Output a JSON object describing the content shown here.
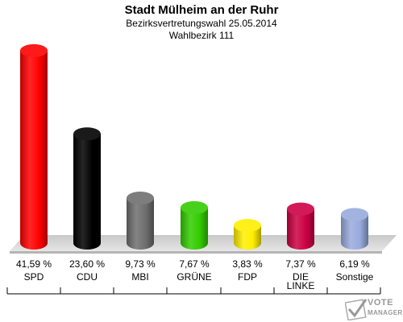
{
  "header": {
    "title": "Stadt Mülheim an der Ruhr",
    "subtitle": "Bezirksvertretungswahl 25.05.2014",
    "district": "Wahlbezirk 111"
  },
  "logo": {
    "line1": "VOTE",
    "line2": "MANAGER"
  },
  "chart_data": {
    "type": "bar",
    "categories": [
      "SPD",
      "CDU",
      "MBI",
      "GRÜNE",
      "FDP",
      "DIE LINKE",
      "Sonstige"
    ],
    "category_lines": [
      [
        "SPD"
      ],
      [
        "CDU"
      ],
      [
        "MBI"
      ],
      [
        "GRÜNE"
      ],
      [
        "FDP"
      ],
      [
        "DIE",
        "LINKE"
      ],
      [
        "Sonstige"
      ]
    ],
    "values": [
      41.59,
      23.6,
      9.73,
      7.67,
      3.83,
      7.37,
      6.19
    ],
    "value_labels": [
      "41,59 %",
      "23,60 %",
      "9,73 %",
      "7,67 %",
      "3,83 %",
      "7,37 %",
      "6,19 %"
    ],
    "colors": [
      "#ff0000",
      "#000000",
      "#6e6e6e",
      "#33cc00",
      "#ffee00",
      "#cc0044",
      "#99aadd"
    ],
    "grid": false,
    "legend": "none"
  }
}
